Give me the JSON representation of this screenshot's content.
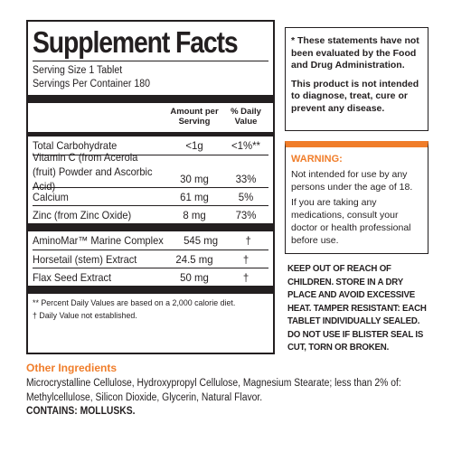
{
  "facts": {
    "title": "Supplement Facts",
    "serving_size": "Serving Size 1 Tablet",
    "servings_per_container": "Servings Per Container 180",
    "col_amount": "Amount per Serving",
    "col_dv": "% Daily Value",
    "group1": [
      {
        "name": "Total Carbohydrate",
        "amount": "<1g",
        "dv": "<1%**"
      }
    ],
    "group2": [
      {
        "name": "Vitamin C (from Acerola (fruit) Powder and Ascorbic Acid)",
        "amount": "30 mg",
        "dv": "33%"
      },
      {
        "name": "Calcium",
        "amount": "61 mg",
        "dv": "5%"
      },
      {
        "name": "Zinc (from Zinc Oxide)",
        "amount": "8 mg",
        "dv": "73%"
      }
    ],
    "group3": [
      {
        "name": "AminoMar™ Marine Complex",
        "amount": "545 mg",
        "dv": "†"
      },
      {
        "name": "Horsetail (stem) Extract",
        "amount": "24.5 mg",
        "dv": "†"
      },
      {
        "name": "Flax Seed Extract",
        "amount": "50 mg",
        "dv": "†"
      }
    ],
    "footnote1": "** Percent Daily Values are based on a 2,000 calorie diet.",
    "footnote2": "† Daily Value not established."
  },
  "disclaimer": {
    "p1": "* These statements have not been evaluated by the Food and Drug Administration.",
    "p2": "This product is not intended to diagnose, treat, cure or prevent any disease."
  },
  "warning": {
    "heading": "WARNING:",
    "p1": "Not intended for use by any persons under the age of 18.",
    "p2": "If you are taking any medications, consult your doctor or health professional before use."
  },
  "keep_out": "KEEP OUT OF REACH OF CHILDREN. STORE IN A DRY PLACE AND AVOID EXCESSIVE HEAT. TAMPER RESISTANT: EACH TABLET INDIVIDUALLY SEALED. DO NOT USE IF BLISTER SEAL IS CUT, TORN OR BROKEN.",
  "other_ingredients": {
    "heading": "Other Ingredients",
    "text": "Microcrystalline Cellulose, Hydroxypropyl Cellulose, Magnesium Stearate; less than 2% of: Methylcellulose, Silicon Dioxide, Glycerin, Natural Flavor.",
    "contains": "CONTAINS: MOLLUSKS."
  },
  "colors": {
    "accent": "#f07d2a",
    "ink": "#231f20"
  }
}
